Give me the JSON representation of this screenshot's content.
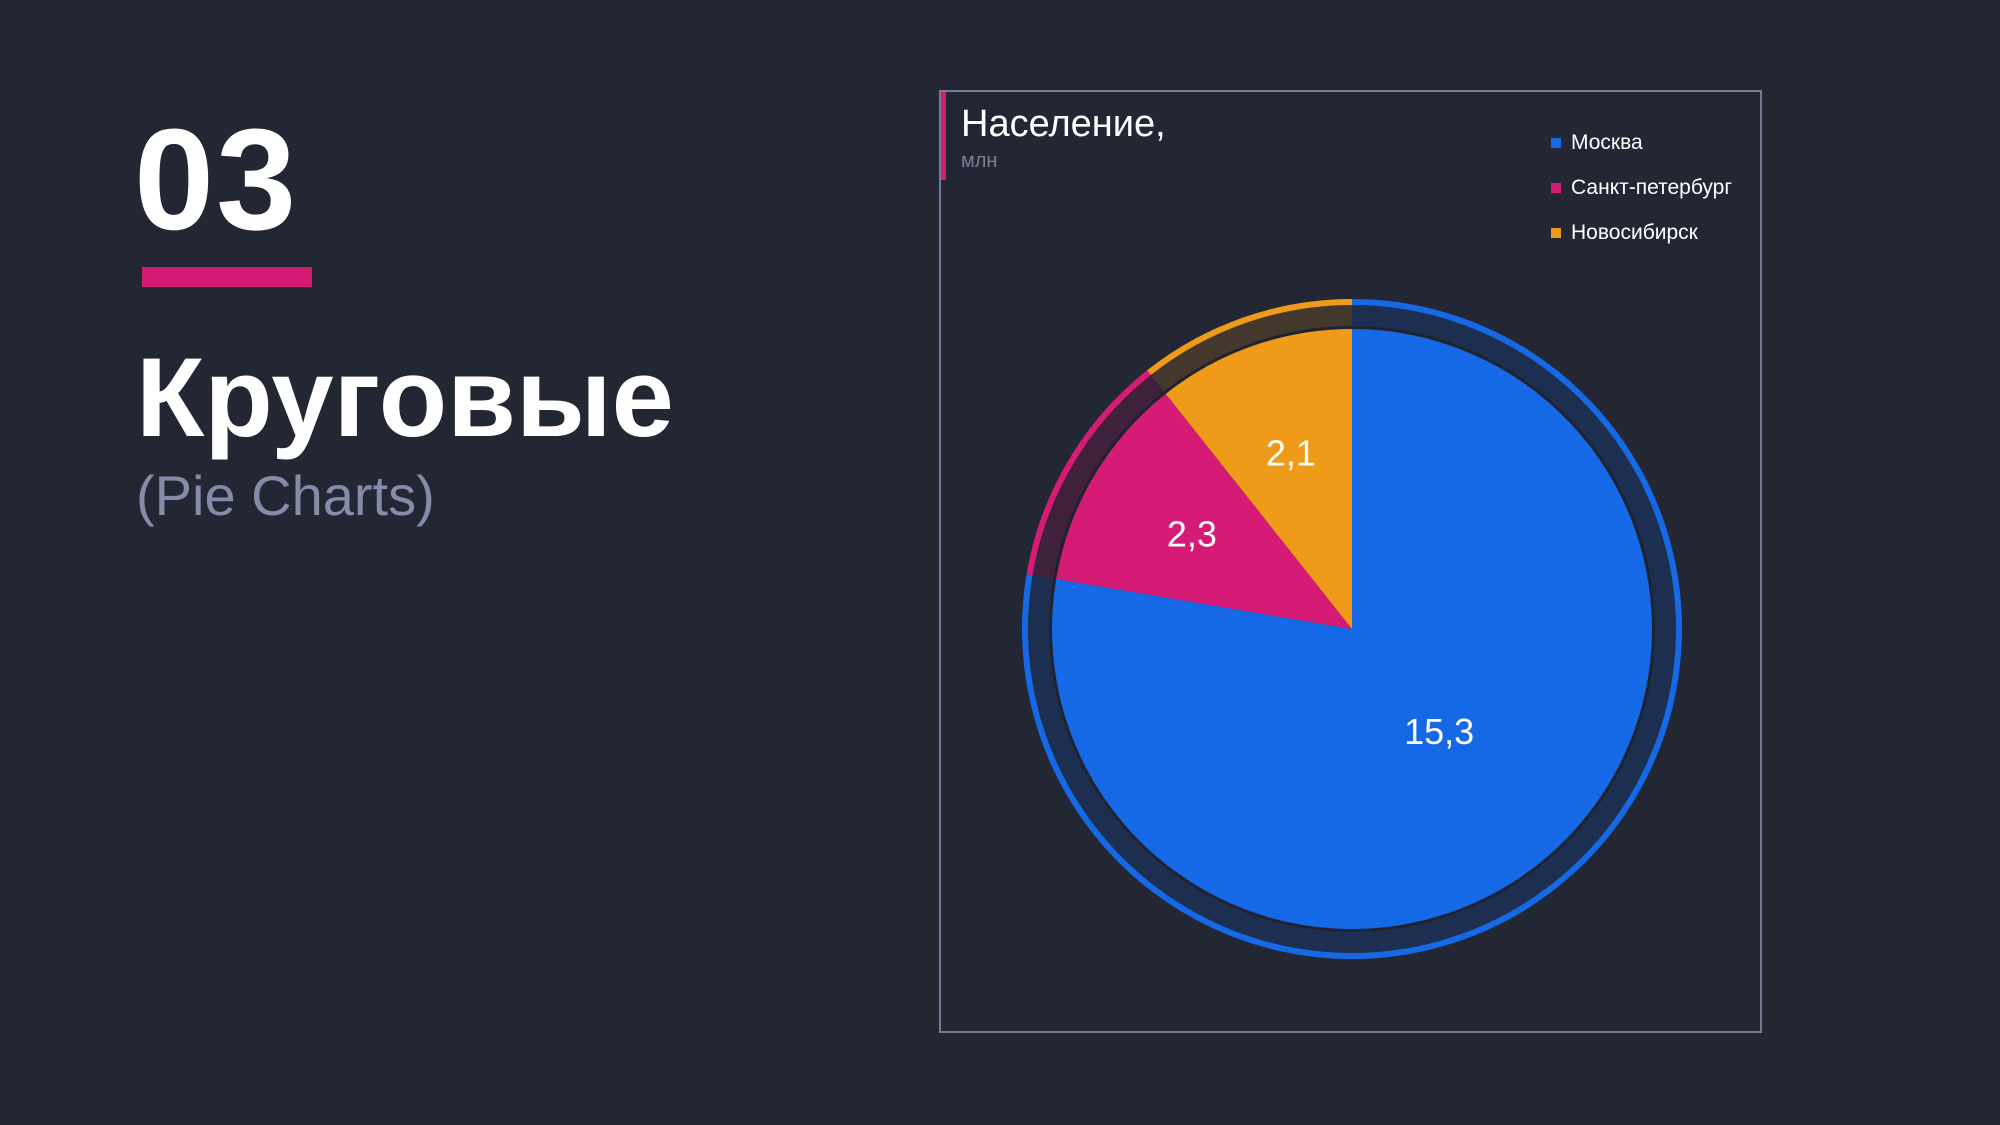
{
  "slide": {
    "number": "03",
    "title": "Круговые",
    "subtitle": "(Pie Charts)",
    "accent_color": "#d61b76"
  },
  "chart_data": {
    "type": "pie",
    "title": "Население,",
    "unit": "млн",
    "categories": [
      "Москва",
      "Санкт-петербург",
      "Новосибирск"
    ],
    "values": [
      15.3,
      2.3,
      2.1
    ],
    "value_labels": [
      "15,3",
      "2,3",
      "2,1"
    ],
    "colors": [
      "#1669e6",
      "#d61b76",
      "#f09a1a"
    ],
    "legend_position": "top-right",
    "start_angle": "top, clockwise"
  }
}
